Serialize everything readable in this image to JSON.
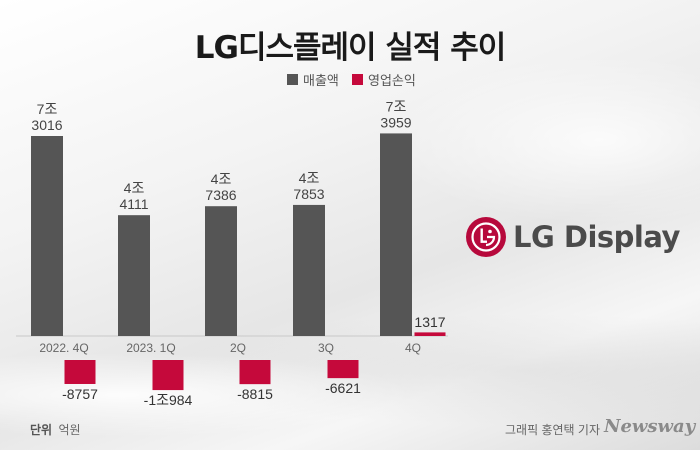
{
  "title": "LG디스플레이 실적 추이",
  "legend": [
    {
      "label": "매출액",
      "color": "#555555"
    },
    {
      "label": "영업손익",
      "color": "#c5093b"
    }
  ],
  "logo_text": "LG Display",
  "unit_label": "단위",
  "unit_value": "억원",
  "credit": "그래픽 홍연택 기자",
  "brand": "Newsway",
  "chart_data": {
    "type": "bar",
    "categories": [
      "2022. 4Q",
      "2023. 1Q",
      "2Q",
      "3Q",
      "4Q"
    ],
    "series": [
      {
        "name": "매출액",
        "color": "#555555",
        "values": [
          73016,
          44111,
          47386,
          47853,
          73959
        ],
        "labels": [
          [
            "7조",
            "3016"
          ],
          [
            "4조",
            "4111"
          ],
          [
            "4조",
            "7386"
          ],
          [
            "4조",
            "7853"
          ],
          [
            "7조",
            "3959"
          ]
        ]
      },
      {
        "name": "영업손익",
        "color": "#c5093b",
        "values": [
          -8757,
          -10984,
          -8815,
          -6621,
          1317
        ],
        "labels": [
          "-8757",
          "-1조984",
          "-8815",
          "-6621",
          "1317"
        ]
      }
    ]
  }
}
